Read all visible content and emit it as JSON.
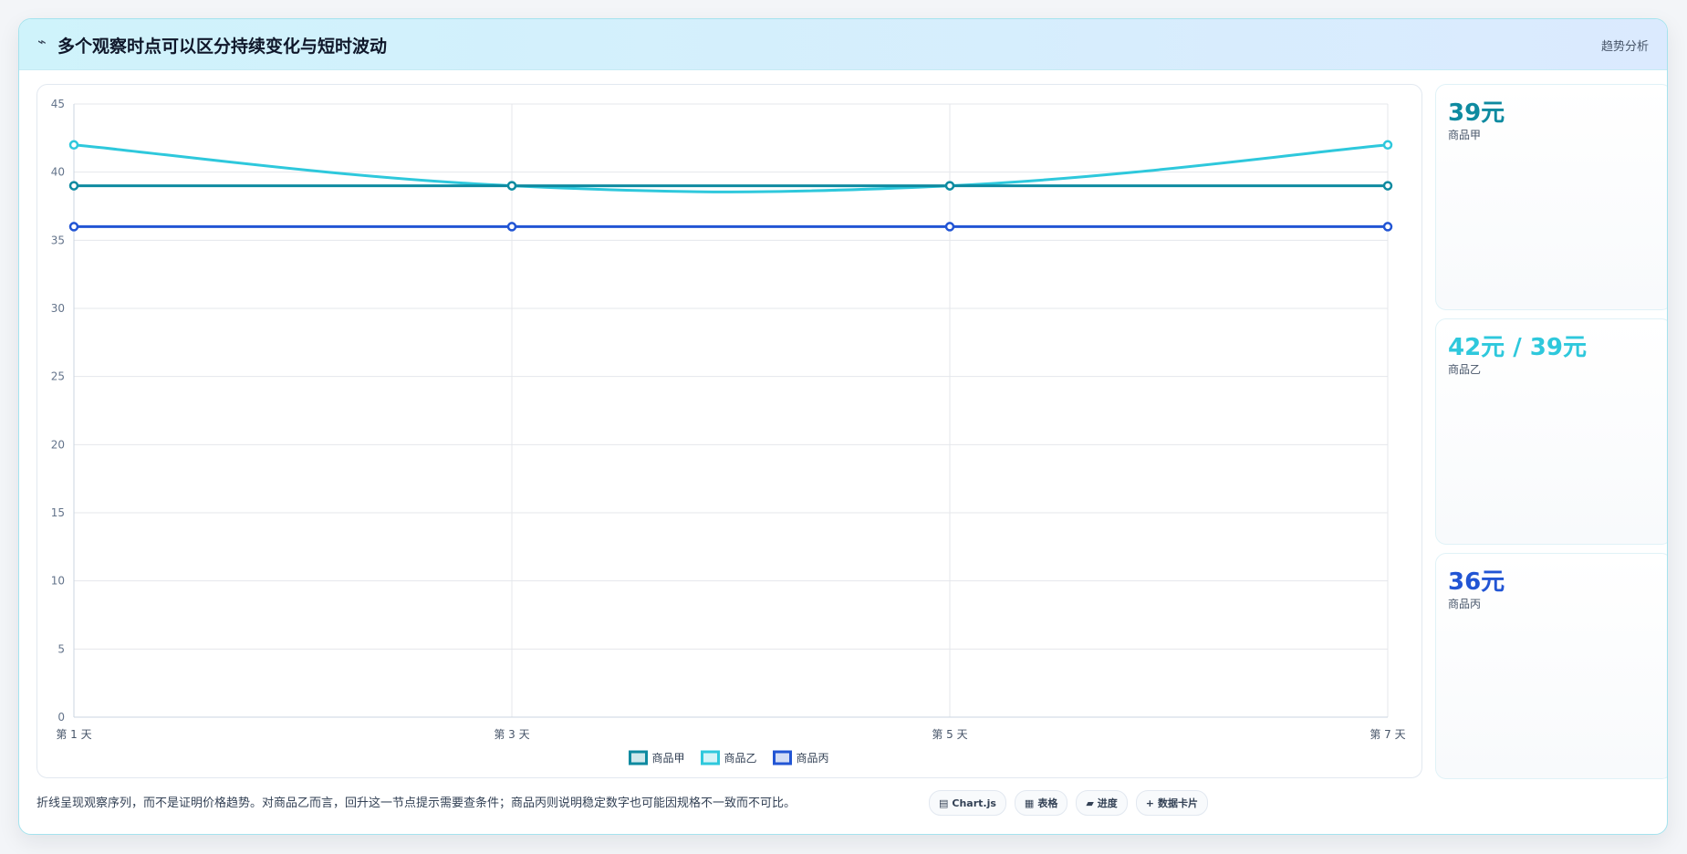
{
  "header": {
    "title": "多个观察时点可以区分持续变化与短时波动",
    "tag": "趋势分析"
  },
  "chart_data": {
    "type": "line",
    "categories": [
      "第 1 天",
      "第 3 天",
      "第 5 天",
      "第 7 天"
    ],
    "series": [
      {
        "name": "商品甲",
        "values": [
          39,
          39,
          39,
          39
        ],
        "color": "#0e8aa0"
      },
      {
        "name": "商品乙",
        "values": [
          42,
          39,
          39,
          42
        ],
        "color": "#2ec8dc"
      },
      {
        "name": "商品丙",
        "values": [
          36,
          36,
          36,
          36
        ],
        "color": "#2255d4"
      }
    ],
    "ylim": [
      0,
      45
    ],
    "yticks": [
      0,
      5,
      10,
      15,
      20,
      25,
      30,
      35,
      40,
      45
    ],
    "grid": true,
    "legend": "bottom"
  },
  "cards": [
    {
      "value": "39元",
      "label": "商品甲",
      "color": "#0e8aa0"
    },
    {
      "value": "42元 / 39元",
      "label": "商品乙",
      "color": "#2ec8dc"
    },
    {
      "value": "36元",
      "label": "商品丙",
      "color": "#2255d4"
    }
  ],
  "footer": {
    "note": "折线呈现观察序列，而不是证明价格趋势。对商品乙而言，回升这一节点提示需要查条件；商品丙则说明稳定数字也可能因规格不一致而不可比。",
    "pills": [
      {
        "icon": "▤",
        "label": "Chart.js"
      },
      {
        "icon": "▦",
        "label": "表格"
      },
      {
        "icon": "▰",
        "label": "进度"
      },
      {
        "icon": "+",
        "label": "数据卡片"
      }
    ]
  }
}
